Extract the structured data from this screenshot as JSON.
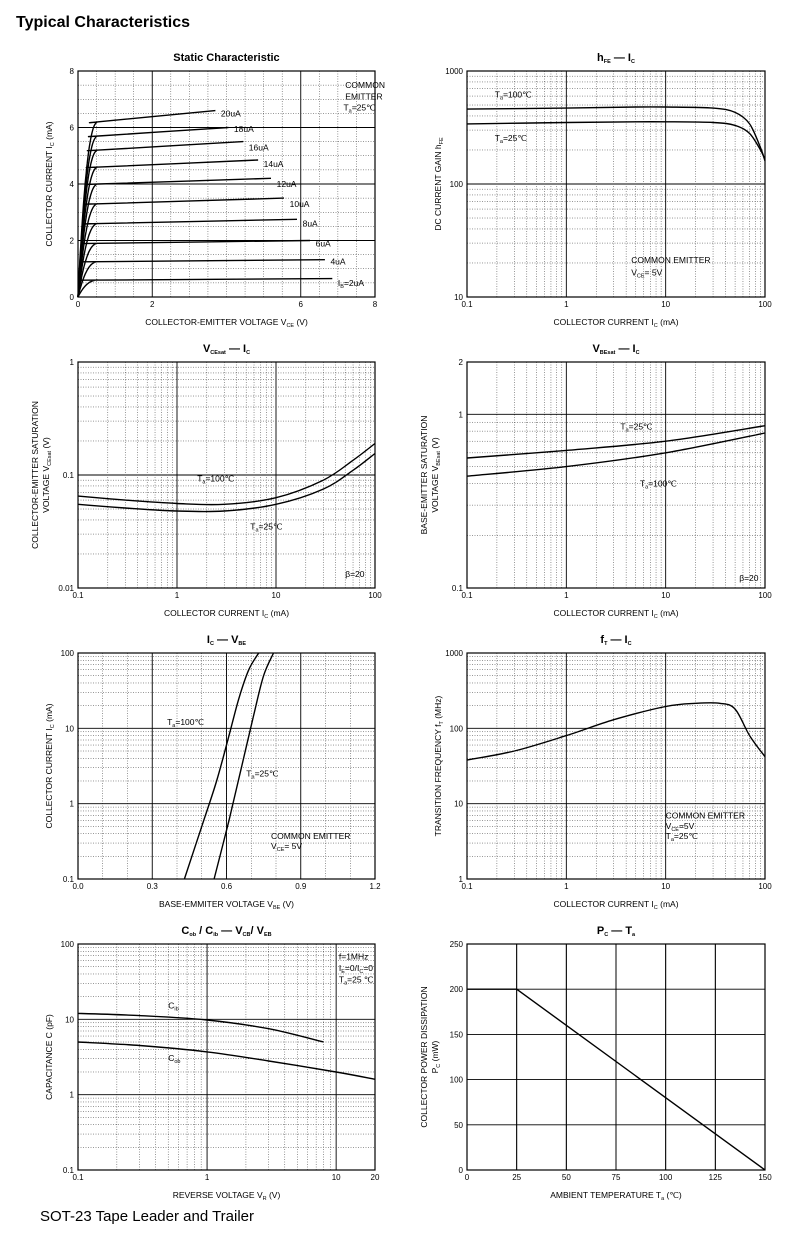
{
  "page": {
    "title": "Typical Characteristics",
    "footer": "SOT-23  Tape Leader and Trailer"
  },
  "chart_data": [
    {
      "id": "static",
      "type": "line",
      "title": "Static Characteristic",
      "xlabel": "COLLECTOR-EMITTER VOLTAGE   V",
      "xlabel_sub": "CE",
      "xlabel_unit": "(V)",
      "ylabel": "COLLECTOR CURRENT   I",
      "ylabel_sub": "C",
      "ylabel_unit": "(mA)",
      "xscale": "linear",
      "yscale": "linear",
      "xlim": [
        0,
        8
      ],
      "ylim": [
        0,
        8
      ],
      "xticks": [
        0,
        2,
        6,
        8
      ],
      "yticks": [
        0,
        2,
        4,
        6,
        8
      ],
      "grid": true,
      "annotations": [
        {
          "text": "COMMON",
          "x": 7.2,
          "y": 7.4
        },
        {
          "text": "EMITTER",
          "x": 7.2,
          "y": 7.0
        },
        {
          "text": "T",
          "sub": "a",
          "rest": "=25℃",
          "x": 7.15,
          "y": 6.6
        }
      ],
      "series": [
        {
          "name": "20uA",
          "sat": 6.2,
          "end": 6.6,
          "label": {
            "x": 3.85,
            "y": 6.5
          }
        },
        {
          "name": "18uA",
          "sat": 5.7,
          "end": 6.0,
          "label": {
            "x": 4.2,
            "y": 5.95
          }
        },
        {
          "name": "16uA",
          "sat": 5.2,
          "end": 5.5,
          "label": {
            "x": 4.6,
            "y": 5.3
          }
        },
        {
          "name": "14uA",
          "sat": 4.6,
          "end": 4.85,
          "label": {
            "x": 5.0,
            "y": 4.7
          }
        },
        {
          "name": "12uA",
          "sat": 4.0,
          "end": 4.2,
          "label": {
            "x": 5.35,
            "y": 4.0
          }
        },
        {
          "name": "10uA",
          "sat": 3.3,
          "end": 3.5,
          "label": {
            "x": 5.7,
            "y": 3.3
          }
        },
        {
          "name": "8uA",
          "sat": 2.6,
          "end": 2.75,
          "label": {
            "x": 6.05,
            "y": 2.6
          }
        },
        {
          "name": "6uA",
          "sat": 1.9,
          "end": 2.0,
          "label": {
            "x": 6.4,
            "y": 1.9
          }
        },
        {
          "name": "4uA",
          "sat": 1.25,
          "end": 1.32,
          "label": {
            "x": 6.8,
            "y": 1.25
          }
        },
        {
          "name": "I",
          "sub": "B",
          "rest": "=2uA",
          "sat": 0.6,
          "end": 0.65,
          "label": {
            "x": 7.0,
            "y": 0.5
          }
        }
      ]
    },
    {
      "id": "hfe",
      "type": "line",
      "title": "h",
      "title_sub": "FE",
      "title_rest": "—   I",
      "title_sub2": "C",
      "xlabel": "COLLECTOR CURRENT   I",
      "xlabel_sub": "C",
      "xlabel_unit": "(mA)",
      "ylabel": "DC CURRENT GAIN   h",
      "ylabel_sub": "FE",
      "xscale": "log",
      "yscale": "log",
      "xlim": [
        0.1,
        100
      ],
      "ylim": [
        10,
        1000
      ],
      "xticks": [
        0.1,
        1,
        10,
        100
      ],
      "yticks": [
        10,
        100,
        1000
      ],
      "grid": true,
      "annotations": [
        {
          "text": "T",
          "sub": "a",
          "rest": "=100℃",
          "x": 0.19,
          "y": 580
        },
        {
          "text": "T",
          "sub": "a",
          "rest": "=25℃",
          "x": 0.19,
          "y": 240
        },
        {
          "text": "COMMON EMITTER",
          "x": 4.5,
          "y": 20
        },
        {
          "text": "V",
          "sub": "CE",
          "rest": "= 5V",
          "x": 4.5,
          "y": 15.5
        }
      ],
      "series": [
        {
          "name": "T=100℃",
          "x": [
            0.1,
            1,
            5,
            10,
            30,
            50,
            70,
            90,
            100
          ],
          "y": [
            460,
            470,
            480,
            480,
            470,
            430,
            340,
            210,
            160
          ]
        },
        {
          "name": "T=25℃",
          "x": [
            0.1,
            1,
            5,
            10,
            30,
            50,
            70,
            90,
            100
          ],
          "y": [
            340,
            350,
            355,
            355,
            350,
            330,
            280,
            200,
            165
          ]
        }
      ]
    },
    {
      "id": "vcesat",
      "type": "line",
      "title": "V",
      "title_sub": "CEsat",
      "title_rest": "—   I",
      "title_sub2": "C",
      "xlabel": "COLLECTOR CURRENT   I",
      "xlabel_sub": "C",
      "xlabel_unit": "(mA)",
      "ylabel": "COLLECTOR-EMITTER SATURATION",
      "ylabel2": "VOLTAGE   V",
      "ylabel2_sub": "CEsat",
      "ylabel2_unit": "(V)",
      "xscale": "log",
      "yscale": "log",
      "xlim": [
        0.1,
        100
      ],
      "ylim": [
        0.01,
        1
      ],
      "xticks": [
        0.1,
        1,
        10,
        100
      ],
      "yticks": [
        0.01,
        0.1,
        1
      ],
      "grid": true,
      "annotations": [
        {
          "text": "T",
          "sub": "a",
          "rest": "=100℃",
          "x": 1.6,
          "y": 0.088
        },
        {
          "text": "T",
          "sub": "a",
          "rest": "=25℃",
          "x": 5.5,
          "y": 0.033
        },
        {
          "text": "β=20",
          "x": 50,
          "y": 0.0125
        }
      ],
      "series": [
        {
          "name": "T=100℃",
          "x": [
            0.1,
            0.3,
            1,
            3,
            10,
            30,
            60,
            100
          ],
          "y": [
            0.065,
            0.06,
            0.056,
            0.055,
            0.063,
            0.09,
            0.135,
            0.19
          ]
        },
        {
          "name": "T=25℃",
          "x": [
            0.1,
            0.3,
            1,
            3,
            10,
            30,
            60,
            100
          ],
          "y": [
            0.055,
            0.051,
            0.048,
            0.048,
            0.055,
            0.075,
            0.11,
            0.155
          ]
        }
      ]
    },
    {
      "id": "vbesat",
      "type": "line",
      "title": "V",
      "title_sub": "BEsat",
      "title_rest": "—   I",
      "title_sub2": "C",
      "xlabel": "COLLECTOR CURRENT   I",
      "xlabel_sub": "C",
      "xlabel_unit": "(mA)",
      "ylabel": "BASE-EMITTER SATURATION",
      "ylabel2": "VOLTAGE   V",
      "ylabel2_sub": "BEsat",
      "ylabel2_unit": "(V)",
      "xscale": "log",
      "yscale": "log",
      "xlim": [
        0.1,
        100
      ],
      "ylim": [
        0.1,
        2
      ],
      "xticks": [
        0.1,
        1,
        10,
        100
      ],
      "yticks": [
        0.1,
        1,
        2
      ],
      "grid": true,
      "annotations": [
        {
          "text": "T",
          "sub": "a",
          "rest": "=25℃",
          "x": 3.5,
          "y": 0.82
        },
        {
          "text": "T",
          "sub": "a",
          "rest": "=100℃",
          "x": 5.5,
          "y": 0.385
        },
        {
          "text": "β=20",
          "x": 55,
          "y": 0.11
        }
      ],
      "series": [
        {
          "name": "T=25℃",
          "x": [
            0.1,
            1,
            10,
            100
          ],
          "y": [
            0.56,
            0.62,
            0.7,
            0.86
          ]
        },
        {
          "name": "T=100℃",
          "x": [
            0.1,
            1,
            10,
            100
          ],
          "y": [
            0.44,
            0.5,
            0.6,
            0.78
          ]
        }
      ]
    },
    {
      "id": "icvbe",
      "type": "line",
      "title": "I",
      "title_sub": "C",
      "title_rest": "—   V",
      "title_sub2": "BE",
      "xlabel": "BASE-EMMITER VOLTAGE   V",
      "xlabel_sub": "BE",
      "xlabel_unit": "(V)",
      "ylabel": "COLLECTOR CURRENT   I",
      "ylabel_sub": "C",
      "ylabel_unit": "(mA)",
      "xscale": "linear",
      "yscale": "log",
      "xlim": [
        0,
        1.2
      ],
      "ylim": [
        0.1,
        100
      ],
      "xticks": [
        0.0,
        0.3,
        0.6,
        0.9,
        1.2
      ],
      "yticks": [
        0.1,
        1,
        10,
        100
      ],
      "xtick_labels": [
        "0.0",
        "0.3",
        "0.6",
        "0.9",
        "1.2"
      ],
      "grid": true,
      "annotations": [
        {
          "text": "T",
          "sub": "a",
          "rest": "=100℃",
          "x": 0.36,
          "y": 11
        },
        {
          "text": "T",
          "sub": "a",
          "rest": "=25℃",
          "x": 0.68,
          "y": 2.3
        },
        {
          "text": "COMMON EMITTER",
          "x": 0.78,
          "y": 0.34
        },
        {
          "text": "V",
          "sub": "CE",
          "rest": "= 5V",
          "x": 0.78,
          "y": 0.25
        }
      ],
      "series": [
        {
          "name": "T=100℃",
          "x": [
            0.43,
            0.5,
            0.56,
            0.61,
            0.65,
            0.69,
            0.73
          ],
          "y": [
            0.1,
            0.5,
            2,
            8,
            25,
            60,
            100
          ]
        },
        {
          "name": "T=25℃",
          "x": [
            0.55,
            0.61,
            0.66,
            0.71,
            0.75,
            0.79
          ],
          "y": [
            0.1,
            0.6,
            3,
            15,
            50,
            100
          ]
        }
      ]
    },
    {
      "id": "ft",
      "type": "line",
      "title": "f",
      "title_sub": "T",
      "title_rest": "—   I",
      "title_sub2": "C",
      "xlabel": "COLLECTOR CURRENT   I",
      "xlabel_sub": "C",
      "xlabel_unit": "(mA)",
      "ylabel": "TRANSITION FREQUENCY   f",
      "ylabel_sub": "T",
      "ylabel_unit": "(MHz)",
      "xscale": "log",
      "yscale": "log",
      "xlim": [
        0.1,
        100
      ],
      "ylim": [
        1,
        1000
      ],
      "xticks": [
        0.1,
        1,
        10,
        100
      ],
      "yticks": [
        1,
        10,
        100,
        1000
      ],
      "grid": true,
      "annotations": [
        {
          "text": "COMMON EMITTER",
          "x": 10,
          "y": 6.4
        },
        {
          "text": "V",
          "sub": "CE",
          "rest": "=5V",
          "x": 10,
          "y": 4.6
        },
        {
          "text": "T",
          "sub": "a",
          "rest": "=25℃",
          "x": 10,
          "y": 3.4
        }
      ],
      "series": [
        {
          "name": "fT",
          "x": [
            0.1,
            0.3,
            1,
            3,
            10,
            20,
            35,
            50,
            70,
            100
          ],
          "y": [
            38,
            50,
            80,
            130,
            195,
            215,
            215,
            180,
            80,
            42
          ]
        }
      ]
    },
    {
      "id": "cap",
      "type": "line",
      "title": "C",
      "title_sub": "ob",
      "title_rest": "/ C",
      "title_sub2": "ib",
      "title_rest2": "—   V",
      "title_sub3": "CB",
      "title_rest3": "/ V",
      "title_sub4": "EB",
      "xlabel": "REVERSE VOLTAGE   V",
      "xlabel_sub": "R",
      "xlabel_unit": "(V)",
      "ylabel": "CAPACITANCE   C",
      "ylabel_unit": "(pF)",
      "xscale": "log",
      "yscale": "log",
      "xlim": [
        0.1,
        20
      ],
      "ylim": [
        0.1,
        100
      ],
      "xticks": [
        0.1,
        1,
        10,
        20
      ],
      "yticks": [
        0.1,
        1,
        10,
        100
      ],
      "grid": true,
      "annotations": [
        {
          "text": "f=1MHz",
          "x": 10.5,
          "y": 62
        },
        {
          "text": "I",
          "sub": "E",
          "rest": "=0/I",
          "sub2": "C",
          "rest2": "=0",
          "x": 10.5,
          "y": 44
        },
        {
          "text": "T",
          "sub": "a",
          "rest": "=25 ℃",
          "x": 10.5,
          "y": 31
        },
        {
          "text": "C",
          "sub": "ib",
          "x": 0.5,
          "y": 14
        },
        {
          "text": "C",
          "sub": "ob",
          "x": 0.5,
          "y": 2.8
        }
      ],
      "series": [
        {
          "name": "Cib",
          "x": [
            0.1,
            0.3,
            1,
            3,
            8
          ],
          "y": [
            12,
            11.2,
            9.8,
            7.5,
            5.0
          ]
        },
        {
          "name": "Cob",
          "x": [
            0.1,
            0.3,
            1,
            3,
            10,
            20
          ],
          "y": [
            5.0,
            4.5,
            3.7,
            2.8,
            2.0,
            1.6
          ]
        }
      ]
    },
    {
      "id": "pc",
      "type": "line",
      "title": "P",
      "title_sub": "C",
      "title_rest": "—   T",
      "title_sub2": "a",
      "xlabel": "AMBIENT TEMPERATURE   T",
      "xlabel_sub": "a",
      "xlabel_unit": "(℃)",
      "ylabel": "COLLECTOR POWER DISSIPATION",
      "ylabel2": "P",
      "ylabel2_sub": "C",
      "ylabel2_unit": "(mW)",
      "xscale": "linear",
      "yscale": "linear",
      "xlim": [
        0,
        150
      ],
      "ylim": [
        0,
        250
      ],
      "xticks": [
        0,
        25,
        50,
        75,
        100,
        125,
        150
      ],
      "yticks": [
        0,
        50,
        100,
        150,
        200,
        250
      ],
      "grid": true,
      "annotations": [],
      "series": [
        {
          "name": "Pc",
          "x": [
            0,
            25,
            150
          ],
          "y": [
            200,
            200,
            0
          ]
        }
      ]
    }
  ]
}
